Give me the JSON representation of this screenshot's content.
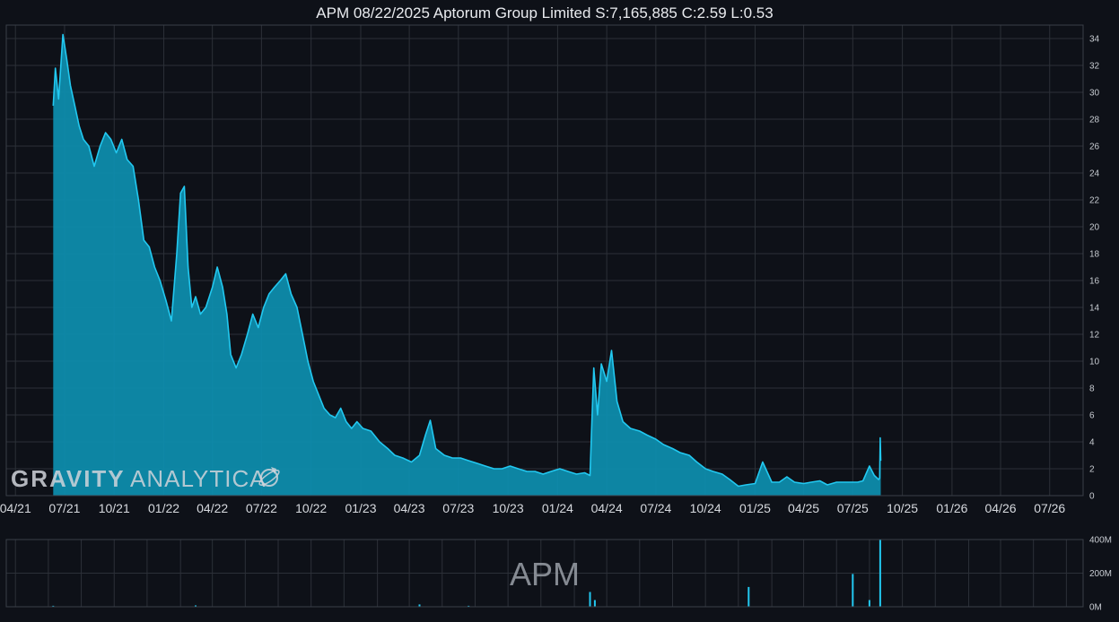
{
  "chart_data": [
    {
      "type": "area",
      "title": "APM 08/22/2025 Aptorum Group Limited S:7,165,885 C:2.59 L:0.53",
      "xlabel": "",
      "ylabel": "",
      "x_tick_labels": [
        "04/21",
        "07/21",
        "10/21",
        "01/22",
        "04/22",
        "07/22",
        "10/22",
        "01/23",
        "04/23",
        "07/23",
        "10/23",
        "01/24",
        "04/24",
        "07/24",
        "10/24",
        "01/25",
        "04/25",
        "07/25",
        "10/25",
        "01/26",
        "04/26",
        "07/26"
      ],
      "x_range": [
        "2021-03-15",
        "2026-09-01"
      ],
      "ylim": [
        0,
        35
      ],
      "y_ticks": [
        0,
        2,
        4,
        6,
        8,
        10,
        12,
        14,
        16,
        18,
        20,
        22,
        24,
        26,
        28,
        30,
        32,
        34
      ],
      "y_tick_labels": [
        "0",
        "2",
        "4",
        "6",
        "8",
        "10",
        "12",
        "14",
        "16",
        "18",
        "20",
        "22",
        "24",
        "26",
        "28",
        "30",
        "32",
        "34"
      ],
      "grid": true,
      "color": "#22c8f0",
      "fill_color": "#0d8fb0",
      "x": [
        "2021-06-10",
        "2021-06-14",
        "2021-06-20",
        "2021-06-28",
        "2021-07-05",
        "2021-07-12",
        "2021-07-20",
        "2021-07-28",
        "2021-08-05",
        "2021-08-15",
        "2021-08-25",
        "2021-09-05",
        "2021-09-15",
        "2021-09-25",
        "2021-10-05",
        "2021-10-15",
        "2021-10-25",
        "2021-11-05",
        "2021-11-15",
        "2021-11-25",
        "2021-12-05",
        "2021-12-15",
        "2021-12-25",
        "2022-01-05",
        "2022-01-15",
        "2022-01-25",
        "2022-02-01",
        "2022-02-08",
        "2022-02-15",
        "2022-02-22",
        "2022-03-01",
        "2022-03-10",
        "2022-03-20",
        "2022-04-01",
        "2022-04-10",
        "2022-04-20",
        "2022-04-28",
        "2022-05-05",
        "2022-05-15",
        "2022-05-25",
        "2022-06-05",
        "2022-06-15",
        "2022-06-25",
        "2022-07-05",
        "2022-07-15",
        "2022-07-25",
        "2022-08-05",
        "2022-08-15",
        "2022-08-25",
        "2022-09-05",
        "2022-09-15",
        "2022-09-25",
        "2022-10-05",
        "2022-10-15",
        "2022-10-25",
        "2022-11-05",
        "2022-11-15",
        "2022-11-25",
        "2022-12-05",
        "2022-12-15",
        "2022-12-25",
        "2023-01-05",
        "2023-01-20",
        "2023-02-05",
        "2023-02-20",
        "2023-03-05",
        "2023-03-20",
        "2023-04-05",
        "2023-04-20",
        "2023-05-01",
        "2023-05-10",
        "2023-05-20",
        "2023-06-05",
        "2023-06-20",
        "2023-07-05",
        "2023-07-20",
        "2023-08-05",
        "2023-08-20",
        "2023-09-05",
        "2023-09-20",
        "2023-10-05",
        "2023-10-20",
        "2023-11-05",
        "2023-11-20",
        "2023-12-05",
        "2023-12-20",
        "2024-01-05",
        "2024-01-20",
        "2024-02-05",
        "2024-02-20",
        "2024-03-01",
        "2024-03-08",
        "2024-03-15",
        "2024-03-22",
        "2024-04-01",
        "2024-04-10",
        "2024-04-20",
        "2024-05-01",
        "2024-05-15",
        "2024-06-01",
        "2024-06-15",
        "2024-07-01",
        "2024-07-15",
        "2024-08-01",
        "2024-08-15",
        "2024-09-01",
        "2024-09-15",
        "2024-10-01",
        "2024-10-15",
        "2024-11-01",
        "2024-11-15",
        "2024-12-01",
        "2024-12-15",
        "2025-01-01",
        "2025-01-15",
        "2025-02-01",
        "2025-02-15",
        "2025-03-01",
        "2025-03-15",
        "2025-04-01",
        "2025-04-15",
        "2025-05-01",
        "2025-05-15",
        "2025-06-01",
        "2025-06-15",
        "2025-07-01",
        "2025-07-10",
        "2025-07-20",
        "2025-08-01",
        "2025-08-10",
        "2025-08-18",
        "2025-08-20",
        "2025-08-21",
        "2025-08-22"
      ],
      "values": [
        29.0,
        31.8,
        29.5,
        34.3,
        32.5,
        30.5,
        29.0,
        27.5,
        26.5,
        26.0,
        24.5,
        26.0,
        27.0,
        26.5,
        25.5,
        26.5,
        25.0,
        24.5,
        22.0,
        19.0,
        18.5,
        17.0,
        16.0,
        14.5,
        13.0,
        18.0,
        22.5,
        23.0,
        17.0,
        14.0,
        14.8,
        13.5,
        14.0,
        15.5,
        17.0,
        15.5,
        13.5,
        10.5,
        9.5,
        10.5,
        12.0,
        13.5,
        12.5,
        14.0,
        15.0,
        15.5,
        16.0,
        16.5,
        15.0,
        14.0,
        12.0,
        10.0,
        8.5,
        7.5,
        6.5,
        6.0,
        5.8,
        6.5,
        5.5,
        5.0,
        5.5,
        5.0,
        4.8,
        4.0,
        3.5,
        3.0,
        2.8,
        2.5,
        3.0,
        4.5,
        5.6,
        3.5,
        3.0,
        2.8,
        2.8,
        2.6,
        2.4,
        2.2,
        2.0,
        2.0,
        2.2,
        2.0,
        1.8,
        1.8,
        1.6,
        1.8,
        2.0,
        1.8,
        1.6,
        1.7,
        1.5,
        9.5,
        6.0,
        9.8,
        8.5,
        10.8,
        7.0,
        5.5,
        5.0,
        4.8,
        4.5,
        4.2,
        3.8,
        3.5,
        3.2,
        3.0,
        2.5,
        2.0,
        1.8,
        1.6,
        1.2,
        0.7,
        0.8,
        0.9,
        2.5,
        1.0,
        1.0,
        1.4,
        1.0,
        0.9,
        1.0,
        1.1,
        0.8,
        1.0,
        1.0,
        1.0,
        1.0,
        1.1,
        2.2,
        1.5,
        1.2,
        1.3,
        4.3,
        2.59
      ]
    },
    {
      "type": "bar",
      "title": "",
      "label": "APM",
      "ylim": [
        0,
        400
      ],
      "y_ticks": [
        0,
        200,
        400
      ],
      "y_tick_labels": [
        "0M",
        "200M",
        "400M"
      ],
      "grid": true,
      "color": "#22c8f0",
      "x": [
        "2021-06-10",
        "2022-03-01",
        "2023-04-20",
        "2023-07-20",
        "2024-03-01",
        "2024-03-10",
        "2024-12-20",
        "2025-07-01",
        "2025-08-01",
        "2025-08-21"
      ],
      "values": [
        6,
        8,
        14,
        6,
        88,
        40,
        118,
        195,
        40,
        405
      ]
    }
  ],
  "watermark": {
    "word_bold": "GRAVITY",
    "word_light": "ANALYTICA",
    "icon": "rocket-planet-icon"
  }
}
